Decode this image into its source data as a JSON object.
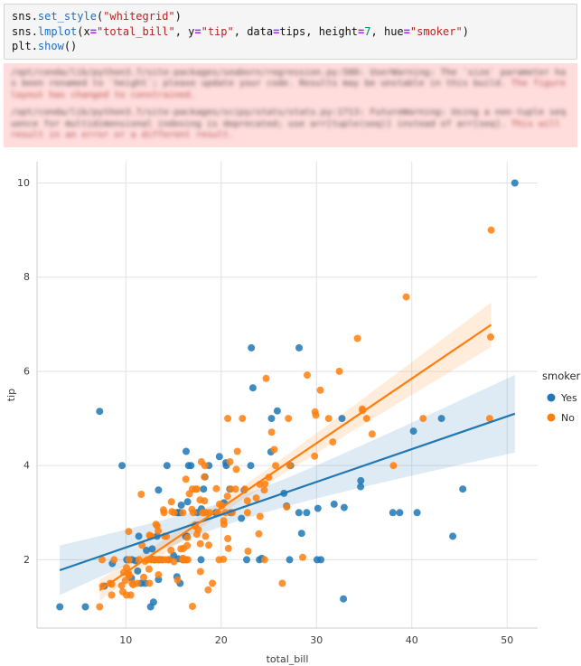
{
  "code_cell": {
    "lines": [
      [
        [
          "n",
          "sns"
        ],
        [
          "p",
          "."
        ],
        [
          "f",
          "set_style"
        ],
        [
          "p",
          "("
        ],
        [
          "s",
          "\"whitegrid\""
        ],
        [
          "p",
          ")"
        ]
      ],
      [
        [
          "n",
          "sns"
        ],
        [
          "p",
          "."
        ],
        [
          "f",
          "lmplot"
        ],
        [
          "p",
          "("
        ],
        [
          "n",
          "x"
        ],
        [
          "o",
          "="
        ],
        [
          "s",
          "\"total_bill\""
        ],
        [
          "p",
          ", "
        ],
        [
          "n",
          "y"
        ],
        [
          "o",
          "="
        ],
        [
          "s",
          "\"tip\""
        ],
        [
          "p",
          ", "
        ],
        [
          "n",
          "data"
        ],
        [
          "o",
          "="
        ],
        [
          "n",
          "tips"
        ],
        [
          "p",
          ", "
        ],
        [
          "n",
          "height"
        ],
        [
          "o",
          "="
        ],
        [
          "d",
          "7"
        ],
        [
          "p",
          ", "
        ],
        [
          "n",
          "hue"
        ],
        [
          "o",
          "="
        ],
        [
          "s",
          "\"smoker\""
        ],
        [
          "p",
          ")"
        ]
      ],
      [
        [
          "n",
          "plt"
        ],
        [
          "p",
          "."
        ],
        [
          "f",
          "show"
        ],
        [
          "p",
          "()"
        ]
      ]
    ]
  },
  "warnings": [
    {
      "body": "/opt/conda/lib/python3.7/site-packages/seaborn/regression.py:580: UserWarning: The `size` parameter has been renamed to `height`; please update your code. Results may be unstable in this build. ",
      "tail": "The figure layout has changed to constrained."
    },
    {
      "body": "/opt/conda/lib/python3.7/site-packages/scipy/stats/stats.py:1713: FutureWarning: Using a non-tuple sequence for multidimensional indexing is deprecated; use arr[tuple(seq)] instead of arr[seq]. ",
      "tail": "This will result in an error or a different result."
    }
  ],
  "chart_data": {
    "type": "scatter",
    "title": "",
    "xlabel": "total_bill",
    "ylabel": "tip",
    "xlim": [
      0.68,
      53.2
    ],
    "ylim": [
      0.55,
      10.45
    ],
    "xticks": [
      10,
      20,
      30,
      40,
      50
    ],
    "yticks": [
      2,
      4,
      6,
      8,
      10
    ],
    "grid": true,
    "regression": true,
    "confidence_interval": 95,
    "colors": {
      "grid": "#e2e2e6",
      "spine": "#cccccc",
      "background": "#ffffff"
    },
    "legend": {
      "title": "smoker",
      "position": "right-outside",
      "entries": [
        {
          "label": "Yes",
          "color": "#1f77b4"
        },
        {
          "label": "No",
          "color": "#ff7f0e"
        }
      ]
    },
    "series": [
      {
        "name": "Yes",
        "color": "#1f77b4",
        "points": [
          [
            38.01,
            3.0
          ],
          [
            11.24,
            1.76
          ],
          [
            20.29,
            3.21
          ],
          [
            13.81,
            2.0
          ],
          [
            11.02,
            1.98
          ],
          [
            18.29,
            3.76
          ],
          [
            3.07,
            1.0
          ],
          [
            15.01,
            2.09
          ],
          [
            26.86,
            3.14
          ],
          [
            25.28,
            5.0
          ],
          [
            17.92,
            3.08
          ],
          [
            19.44,
            3.0
          ],
          [
            32.68,
            5.0
          ],
          [
            28.97,
            3.0
          ],
          [
            5.75,
            1.0
          ],
          [
            16.32,
            4.3
          ],
          [
            40.17,
            4.73
          ],
          [
            27.28,
            4.0
          ],
          [
            12.03,
            1.5
          ],
          [
            21.01,
            3.0
          ],
          [
            11.35,
            2.5
          ],
          [
            15.38,
            3.0
          ],
          [
            44.3,
            2.5
          ],
          [
            22.42,
            3.48
          ],
          [
            15.36,
            1.64
          ],
          [
            20.49,
            4.06
          ],
          [
            25.21,
            4.29
          ],
          [
            14.31,
            4.0
          ],
          [
            16.0,
            2.0
          ],
          [
            17.51,
            3.0
          ],
          [
            10.59,
            1.61
          ],
          [
            10.63,
            2.0
          ],
          [
            50.81,
            10.0
          ],
          [
            15.81,
            3.16
          ],
          [
            7.25,
            5.15
          ],
          [
            31.85,
            3.18
          ],
          [
            16.82,
            4.0
          ],
          [
            32.9,
            3.11
          ],
          [
            17.89,
            2.0
          ],
          [
            14.48,
            2.0
          ],
          [
            9.6,
            4.0
          ],
          [
            34.63,
            3.55
          ],
          [
            34.65,
            3.68
          ],
          [
            23.33,
            5.65
          ],
          [
            45.35,
            3.5
          ],
          [
            23.17,
            6.5
          ],
          [
            40.55,
            3.0
          ],
          [
            20.9,
            3.5
          ],
          [
            30.46,
            2.0
          ],
          [
            18.15,
            3.5
          ],
          [
            23.1,
            4.0
          ],
          [
            15.69,
            1.5
          ],
          [
            19.81,
            4.19
          ],
          [
            28.44,
            2.56
          ],
          [
            15.48,
            2.02
          ],
          [
            16.58,
            4.0
          ],
          [
            10.34,
            2.0
          ],
          [
            43.11,
            5.0
          ],
          [
            13.0,
            2.0
          ],
          [
            13.51,
            2.0
          ],
          [
            18.71,
            4.0
          ],
          [
            12.74,
            2.01
          ],
          [
            13.0,
            2.0
          ],
          [
            16.4,
            2.5
          ],
          [
            20.53,
            4.0
          ],
          [
            16.47,
            3.23
          ],
          [
            26.59,
            3.41
          ],
          [
            38.73,
            3.0
          ],
          [
            24.27,
            2.03
          ],
          [
            12.76,
            2.23
          ],
          [
            30.06,
            2.0
          ],
          [
            25.89,
            5.16
          ],
          [
            13.27,
            2.5
          ],
          [
            28.17,
            6.5
          ],
          [
            12.9,
            1.1
          ],
          [
            28.15,
            3.0
          ],
          [
            11.59,
            1.5
          ],
          [
            7.74,
            1.44
          ],
          [
            30.14,
            3.09
          ],
          [
            12.16,
            2.2
          ],
          [
            13.42,
            3.48
          ],
          [
            8.58,
            1.92
          ],
          [
            13.42,
            1.58
          ],
          [
            16.27,
            2.5
          ],
          [
            10.09,
            2.0
          ],
          [
            22.12,
            2.88
          ],
          [
            24.01,
            2.0
          ],
          [
            15.69,
            3.0
          ],
          [
            15.53,
            3.0
          ],
          [
            12.6,
            1.0
          ],
          [
            32.83,
            1.17
          ],
          [
            27.18,
            2.0
          ],
          [
            22.67,
            2.0
          ]
        ]
      },
      {
        "name": "No",
        "color": "#ff7f0e",
        "points": [
          [
            16.99,
            1.01
          ],
          [
            10.34,
            1.66
          ],
          [
            21.01,
            3.5
          ],
          [
            23.68,
            3.31
          ],
          [
            24.59,
            3.61
          ],
          [
            25.29,
            4.71
          ],
          [
            8.77,
            2.0
          ],
          [
            26.88,
            3.12
          ],
          [
            15.04,
            1.96
          ],
          [
            14.78,
            3.23
          ],
          [
            10.27,
            1.71
          ],
          [
            35.26,
            5.0
          ],
          [
            15.42,
            1.57
          ],
          [
            18.43,
            3.0
          ],
          [
            14.83,
            3.02
          ],
          [
            21.58,
            3.92
          ],
          [
            10.33,
            1.67
          ],
          [
            16.29,
            3.71
          ],
          [
            16.97,
            3.5
          ],
          [
            20.65,
            3.35
          ],
          [
            17.92,
            4.08
          ],
          [
            20.29,
            2.75
          ],
          [
            15.77,
            2.23
          ],
          [
            39.42,
            7.58
          ],
          [
            19.82,
            3.18
          ],
          [
            17.81,
            2.34
          ],
          [
            13.37,
            2.0
          ],
          [
            12.69,
            2.0
          ],
          [
            21.7,
            4.3
          ],
          [
            19.65,
            3.0
          ],
          [
            9.55,
            1.45
          ],
          [
            18.35,
            2.5
          ],
          [
            15.06,
            3.0
          ],
          [
            20.69,
            2.45
          ],
          [
            17.78,
            3.27
          ],
          [
            24.06,
            3.6
          ],
          [
            16.31,
            2.0
          ],
          [
            16.93,
            3.07
          ],
          [
            18.69,
            2.31
          ],
          [
            31.27,
            5.0
          ],
          [
            16.04,
            2.24
          ],
          [
            17.46,
            2.54
          ],
          [
            13.94,
            3.06
          ],
          [
            9.68,
            1.32
          ],
          [
            30.4,
            5.6
          ],
          [
            18.29,
            3.0
          ],
          [
            22.23,
            5.0
          ],
          [
            32.4,
            6.0
          ],
          [
            28.55,
            2.05
          ],
          [
            18.04,
            3.0
          ],
          [
            12.54,
            2.5
          ],
          [
            10.29,
            2.6
          ],
          [
            34.81,
            5.2
          ],
          [
            9.94,
            1.56
          ],
          [
            25.56,
            4.34
          ],
          [
            19.49,
            3.51
          ],
          [
            26.41,
            1.5
          ],
          [
            48.27,
            6.73
          ],
          [
            17.59,
            2.64
          ],
          [
            20.08,
            3.15
          ],
          [
            16.45,
            2.47
          ],
          [
            20.23,
            2.01
          ],
          [
            12.02,
            1.97
          ],
          [
            17.07,
            3.0
          ],
          [
            14.73,
            2.2
          ],
          [
            10.51,
            1.25
          ],
          [
            27.2,
            4.0
          ],
          [
            22.76,
            3.0
          ],
          [
            17.29,
            2.71
          ],
          [
            16.66,
            3.4
          ],
          [
            10.07,
            1.83
          ],
          [
            15.98,
            2.03
          ],
          [
            34.83,
            5.17
          ],
          [
            13.03,
            2.0
          ],
          [
            18.28,
            4.0
          ],
          [
            24.71,
            5.85
          ],
          [
            21.16,
            3.0
          ],
          [
            22.49,
            3.5
          ],
          [
            22.75,
            3.25
          ],
          [
            12.46,
            1.5
          ],
          [
            20.92,
            4.08
          ],
          [
            18.24,
            3.76
          ],
          [
            14.0,
            3.0
          ],
          [
            7.25,
            1.0
          ],
          [
            38.07,
            4.0
          ],
          [
            23.95,
            2.55
          ],
          [
            25.71,
            4.0
          ],
          [
            17.31,
            3.5
          ],
          [
            29.93,
            5.07
          ],
          [
            10.65,
            1.5
          ],
          [
            12.43,
            1.8
          ],
          [
            24.08,
            2.92
          ],
          [
            11.69,
            2.31
          ],
          [
            13.42,
            1.68
          ],
          [
            14.26,
            2.5
          ],
          [
            15.95,
            2.0
          ],
          [
            12.48,
            2.52
          ],
          [
            29.8,
            4.2
          ],
          [
            8.52,
            1.48
          ],
          [
            14.52,
            2.0
          ],
          [
            11.38,
            2.0
          ],
          [
            22.82,
            2.18
          ],
          [
            19.08,
            1.5
          ],
          [
            20.27,
            2.83
          ],
          [
            11.17,
            1.5
          ],
          [
            12.26,
            2.0
          ],
          [
            18.26,
            3.25
          ],
          [
            8.51,
            1.25
          ],
          [
            10.33,
            2.0
          ],
          [
            14.15,
            2.0
          ],
          [
            13.16,
            2.75
          ],
          [
            17.47,
            3.5
          ],
          [
            34.3,
            6.7
          ],
          [
            41.19,
            5.0
          ],
          [
            27.05,
            5.0
          ],
          [
            16.43,
            2.3
          ],
          [
            8.35,
            1.5
          ],
          [
            18.64,
            1.36
          ],
          [
            11.87,
            1.63
          ],
          [
            9.78,
            1.73
          ],
          [
            7.51,
            2.0
          ],
          [
            14.07,
            2.5
          ],
          [
            13.13,
            2.0
          ],
          [
            17.26,
            2.74
          ],
          [
            24.55,
            2.0
          ],
          [
            19.77,
            2.0
          ],
          [
            29.85,
            5.14
          ],
          [
            48.17,
            5.0
          ],
          [
            25.0,
            3.75
          ],
          [
            13.39,
            2.61
          ],
          [
            16.49,
            2.0
          ],
          [
            21.5,
            3.5
          ],
          [
            12.66,
            2.5
          ],
          [
            16.21,
            2.0
          ],
          [
            13.81,
            2.0
          ],
          [
            24.52,
            3.48
          ],
          [
            20.76,
            2.24
          ],
          [
            31.71,
            4.5
          ],
          [
            20.69,
            5.0
          ],
          [
            7.56,
            1.44
          ],
          [
            48.33,
            9.0
          ],
          [
            15.98,
            3.0
          ],
          [
            20.45,
            3.0
          ],
          [
            13.28,
            2.72
          ],
          [
            11.61,
            3.39
          ],
          [
            10.77,
            1.47
          ],
          [
            10.07,
            1.25
          ],
          [
            35.83,
            4.67
          ],
          [
            29.03,
            5.92
          ],
          [
            17.82,
            1.75
          ],
          [
            18.78,
            3.0
          ]
        ]
      }
    ]
  }
}
